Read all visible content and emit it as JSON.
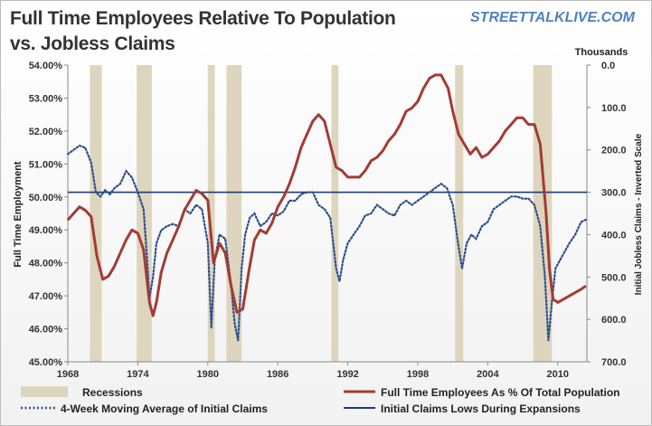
{
  "title_line1": "Full Time Employees Relative To Population",
  "title_line2": "vs. Jobless Claims",
  "watermark": "STREETTALKLIVE.COM",
  "colors": {
    "employment": "#a33b34",
    "claims": "#2d4f8b",
    "lows_line": "#1f3c78",
    "recession": "#ddd5bd"
  },
  "chart_data": {
    "type": "line",
    "xlabel": "",
    "x_ticks": [
      1968,
      1974,
      1980,
      1986,
      1992,
      1998,
      2004,
      2010
    ],
    "xlim": [
      1968,
      2012.5
    ],
    "y_left": {
      "label": "Full Time Employment",
      "ylim": [
        45,
        54
      ],
      "ticks": [
        45,
        46,
        47,
        48,
        49,
        50,
        51,
        52,
        53,
        54
      ],
      "tick_labels": [
        "45.00%",
        "46.00%",
        "47.00%",
        "48.00%",
        "49.00%",
        "50.00%",
        "51.00%",
        "52.00%",
        "53.00%",
        "54.00%"
      ]
    },
    "y_right": {
      "label": "Initial Jobless Claims - Inverted Scale",
      "unit_label": "Thousands",
      "inverted": true,
      "ylim": [
        0,
        700
      ],
      "ticks": [
        0,
        100,
        200,
        300,
        400,
        500,
        600,
        700
      ],
      "tick_labels": [
        "0.0",
        "100.0",
        "200.0",
        "300.0",
        "400.0",
        "500.0",
        "600.0",
        "700.0"
      ]
    },
    "recessions": [
      [
        1969.9,
        1970.9
      ],
      [
        1973.9,
        1975.2
      ],
      [
        1980.0,
        1980.6
      ],
      [
        1981.6,
        1982.9
      ],
      [
        1990.6,
        1991.2
      ],
      [
        2001.2,
        2001.9
      ],
      [
        2007.9,
        2009.5
      ]
    ],
    "claims_lows_level": 300,
    "series": [
      {
        "name": "Full Time Employees As % Of Total Population",
        "axis": "left",
        "x": [
          1968.0,
          1968.5,
          1969.0,
          1969.5,
          1970.0,
          1970.5,
          1971.0,
          1971.5,
          1972.0,
          1972.5,
          1973.0,
          1973.5,
          1974.0,
          1974.5,
          1975.0,
          1975.3,
          1975.6,
          1976.0,
          1976.5,
          1977.0,
          1977.5,
          1978.0,
          1978.5,
          1979.0,
          1979.5,
          1980.0,
          1980.5,
          1981.0,
          1981.5,
          1982.0,
          1982.5,
          1983.0,
          1983.5,
          1984.0,
          1984.5,
          1985.0,
          1985.5,
          1986.0,
          1986.5,
          1987.0,
          1987.5,
          1988.0,
          1988.5,
          1989.0,
          1989.5,
          1990.0,
          1990.5,
          1991.0,
          1991.5,
          1992.0,
          1992.5,
          1993.0,
          1993.5,
          1994.0,
          1994.5,
          1995.0,
          1995.5,
          1996.0,
          1996.5,
          1997.0,
          1997.5,
          1998.0,
          1998.5,
          1999.0,
          1999.5,
          2000.0,
          2000.3,
          2000.6,
          2001.0,
          2001.5,
          2002.0,
          2002.5,
          2003.0,
          2003.5,
          2004.0,
          2004.5,
          2005.0,
          2005.5,
          2006.0,
          2006.5,
          2007.0,
          2007.5,
          2008.0,
          2008.5,
          2009.0,
          2009.3,
          2009.6,
          2010.0,
          2010.5,
          2011.0,
          2011.5,
          2012.0,
          2012.4
        ],
        "values": [
          49.3,
          49.5,
          49.7,
          49.6,
          49.4,
          48.2,
          47.5,
          47.6,
          47.9,
          48.3,
          48.7,
          49.0,
          48.9,
          48.4,
          46.8,
          46.4,
          46.8,
          47.7,
          48.3,
          48.7,
          49.1,
          49.6,
          49.9,
          50.2,
          50.1,
          49.9,
          48.0,
          48.6,
          48.3,
          47.3,
          46.5,
          46.6,
          47.7,
          48.7,
          49.0,
          48.9,
          49.2,
          49.7,
          50.0,
          50.4,
          50.9,
          51.5,
          51.9,
          52.3,
          52.5,
          52.3,
          51.6,
          50.9,
          50.8,
          50.6,
          50.6,
          50.6,
          50.8,
          51.1,
          51.2,
          51.4,
          51.7,
          51.9,
          52.2,
          52.6,
          52.7,
          52.9,
          53.3,
          53.6,
          53.7,
          53.7,
          53.5,
          53.3,
          52.6,
          51.9,
          51.6,
          51.3,
          51.5,
          51.2,
          51.3,
          51.5,
          51.7,
          52.0,
          52.2,
          52.4,
          52.4,
          52.2,
          52.2,
          51.6,
          49.5,
          47.8,
          46.9,
          46.8,
          46.9,
          47.0,
          47.1,
          47.2,
          47.3
        ]
      },
      {
        "name": "4-Week Moving Average of Initial Claims",
        "axis": "right",
        "x": [
          1968.0,
          1968.5,
          1969.0,
          1969.5,
          1970.0,
          1970.4,
          1970.8,
          1971.2,
          1971.6,
          1972.0,
          1972.5,
          1973.0,
          1973.5,
          1974.0,
          1974.5,
          1974.8,
          1975.0,
          1975.3,
          1975.6,
          1976.0,
          1976.5,
          1977.0,
          1977.5,
          1978.0,
          1978.5,
          1979.0,
          1979.5,
          1980.0,
          1980.3,
          1980.6,
          1981.0,
          1981.5,
          1982.0,
          1982.3,
          1982.6,
          1982.9,
          1983.2,
          1983.6,
          1984.0,
          1984.5,
          1985.0,
          1985.5,
          1986.0,
          1986.5,
          1987.0,
          1987.5,
          1988.0,
          1988.5,
          1989.0,
          1989.5,
          1990.0,
          1990.5,
          1991.0,
          1991.3,
          1991.6,
          1992.0,
          1992.5,
          1993.0,
          1993.5,
          1994.0,
          1994.5,
          1995.0,
          1995.5,
          1996.0,
          1996.5,
          1997.0,
          1997.5,
          1998.0,
          1998.5,
          1999.0,
          1999.5,
          2000.0,
          2000.5,
          2001.0,
          2001.4,
          2001.8,
          2002.2,
          2002.6,
          2003.0,
          2003.5,
          2004.0,
          2004.5,
          2005.0,
          2005.5,
          2006.0,
          2006.5,
          2007.0,
          2007.5,
          2008.0,
          2008.5,
          2008.9,
          2009.2,
          2009.5,
          2009.8,
          2010.2,
          2010.6,
          2011.0,
          2011.5,
          2012.0,
          2012.4
        ],
        "values": [
          210,
          200,
          190,
          195,
          230,
          300,
          310,
          295,
          305,
          290,
          280,
          250,
          265,
          300,
          340,
          460,
          550,
          500,
          420,
          390,
          380,
          375,
          380,
          340,
          350,
          330,
          340,
          420,
          620,
          460,
          400,
          410,
          520,
          610,
          650,
          480,
          400,
          360,
          350,
          380,
          370,
          350,
          355,
          345,
          320,
          320,
          305,
          300,
          300,
          330,
          340,
          360,
          480,
          510,
          460,
          420,
          400,
          380,
          355,
          350,
          330,
          340,
          350,
          355,
          330,
          320,
          330,
          320,
          310,
          300,
          290,
          280,
          290,
          330,
          410,
          480,
          420,
          400,
          410,
          380,
          370,
          340,
          330,
          320,
          310,
          310,
          315,
          315,
          330,
          380,
          500,
          650,
          560,
          480,
          460,
          440,
          420,
          400,
          370,
          365
        ]
      },
      {
        "name": "Initial Claims Lows During Expansions",
        "axis": "right",
        "x": [
          1968,
          2012.5
        ],
        "values": [
          300,
          300
        ]
      }
    ],
    "legend": {
      "placement": "bottom",
      "entries": [
        "Recessions",
        "Full Time Employees As % Of Total Population",
        "4-Week Moving Average of Initial Claims",
        "Initial Claims Lows During Expansions"
      ]
    }
  }
}
